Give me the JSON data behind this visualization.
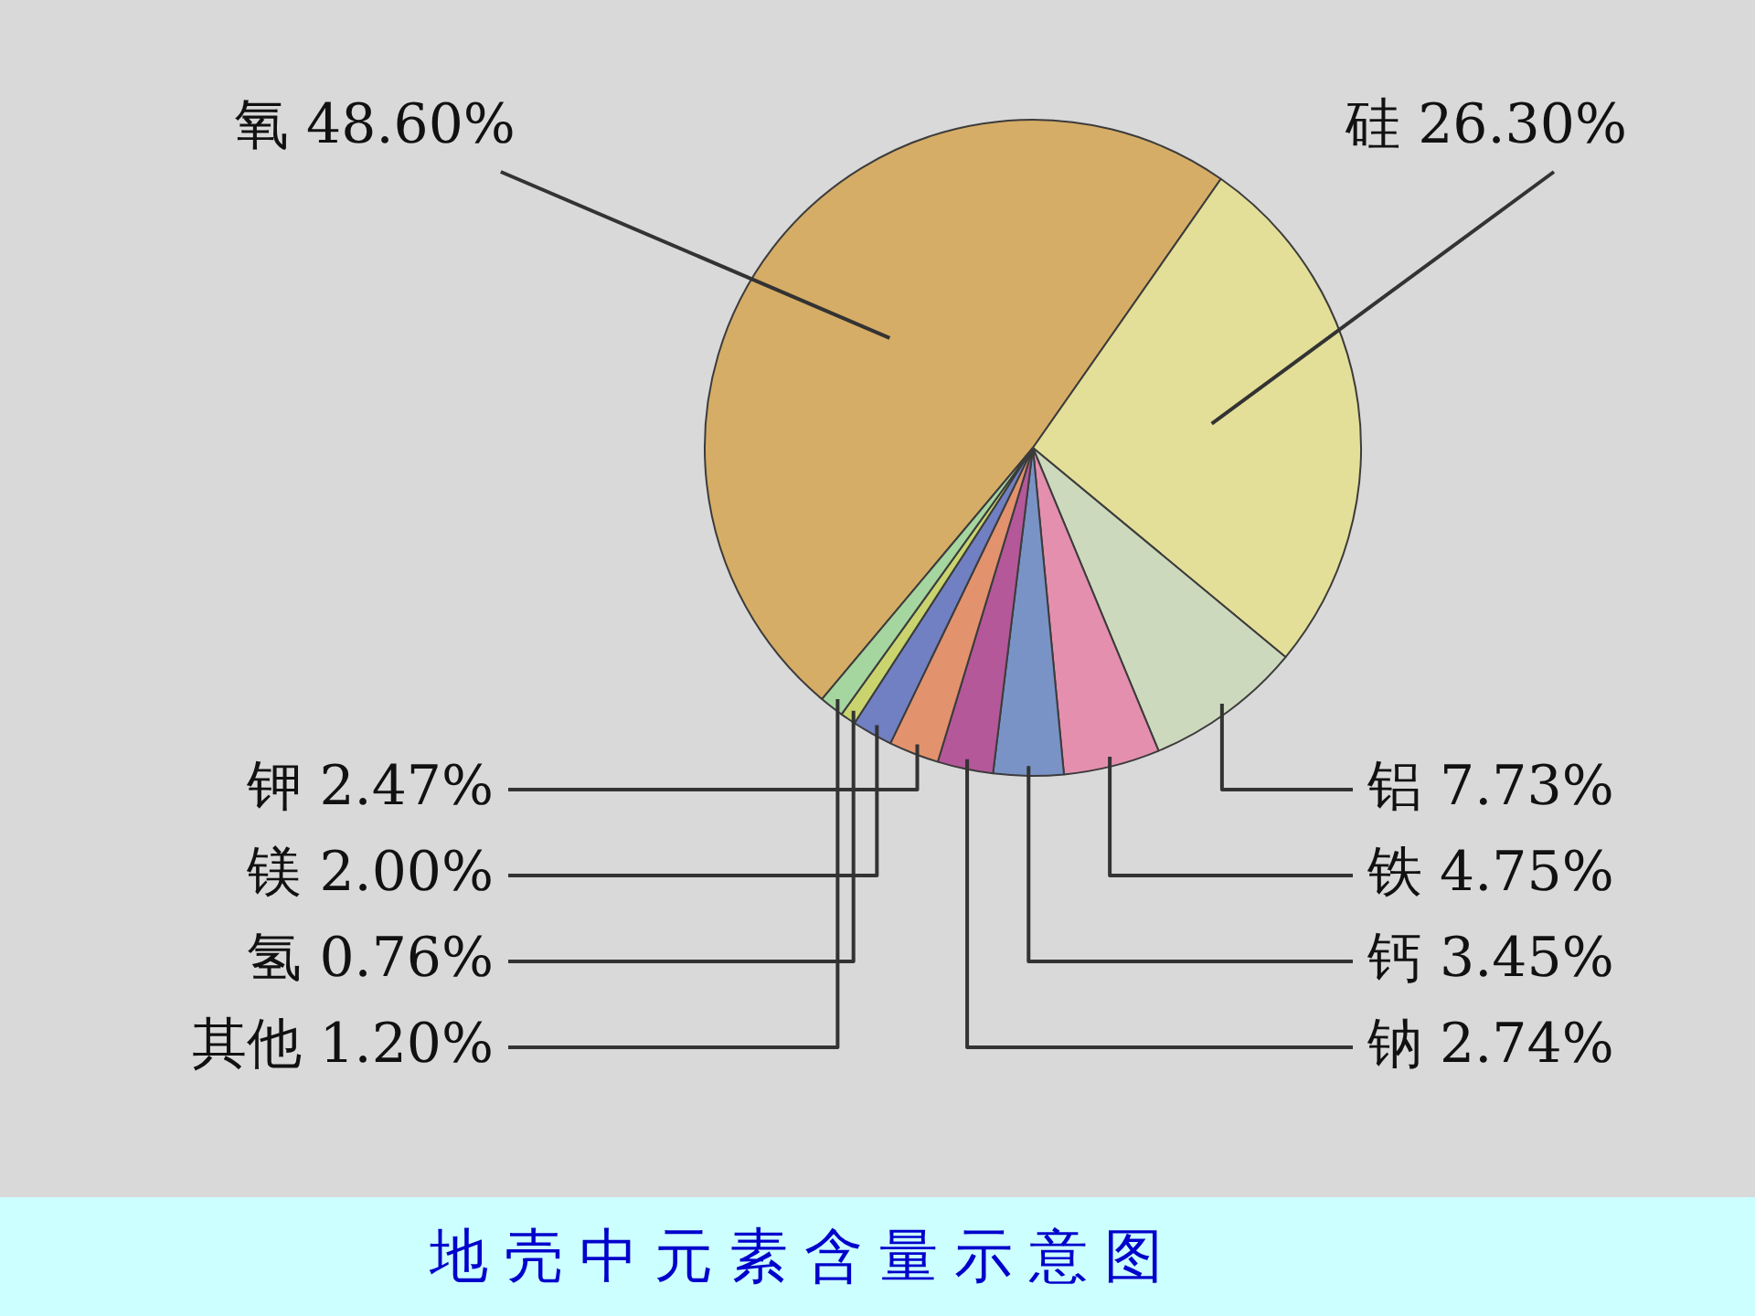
{
  "chart_data": {
    "type": "pie",
    "title": "地壳中元素含量示意图",
    "categories": [
      "氧",
      "硅",
      "铝",
      "铁",
      "钙",
      "钠",
      "钾",
      "镁",
      "氢",
      "其他"
    ],
    "values": [
      48.6,
      26.3,
      7.73,
      4.75,
      3.45,
      2.74,
      2.47,
      2.0,
      0.76,
      1.2
    ],
    "value_labels": [
      "48.60%",
      "26.30%",
      "7.73%",
      "4.75%",
      "3.45%",
      "2.74%",
      "2.47%",
      "2.00%",
      "0.76%",
      "1.20%"
    ],
    "colors": [
      "#d6ad66",
      "#e3df98",
      "#cdd9bd",
      "#e58fae",
      "#7a93c6",
      "#b4589a",
      "#e3926e",
      "#7080c2",
      "#c9d46e",
      "#a6d6a0"
    ]
  }
}
